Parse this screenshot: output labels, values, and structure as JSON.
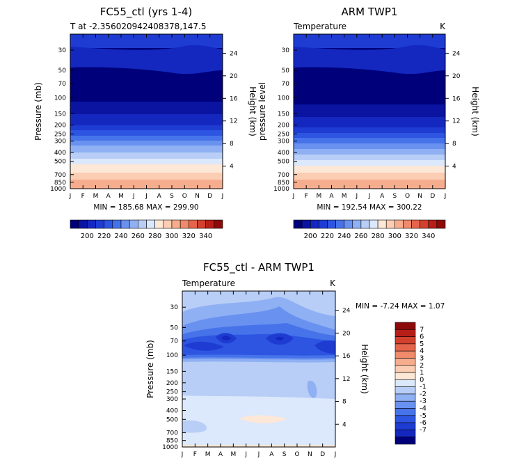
{
  "chart_data": [
    {
      "type": "heatmap",
      "title": "FC55_ctl (yrs 1-4)",
      "subtitle": "T at -2.356020942408378,147.5",
      "units": "",
      "ylabel": "Pressure (mb)",
      "y2label": "Height (km)",
      "x_ticks": [
        "J",
        "F",
        "M",
        "A",
        "M",
        "J",
        "J",
        "A",
        "S",
        "O",
        "N",
        "D",
        "J"
      ],
      "y_ticks": [
        30,
        50,
        70,
        100,
        150,
        200,
        250,
        300,
        400,
        500,
        700,
        850,
        1000
      ],
      "y2_ticks": [
        24,
        20,
        16,
        12,
        8,
        4
      ],
      "ylim": [
        1000,
        20
      ],
      "y_scale": "log",
      "stats": "MIN = 185.68 MAX = 299.90",
      "colorbar_labels": [
        "200",
        "220",
        "240",
        "260",
        "280",
        "300",
        "320",
        "340"
      ]
    },
    {
      "type": "heatmap",
      "title": "ARM TWP1",
      "subtitle": "Temperature",
      "units": "K",
      "ylabel": "pressure level",
      "y2label": "Height (km)",
      "x_ticks": [
        "J",
        "F",
        "M",
        "A",
        "M",
        "J",
        "J",
        "A",
        "S",
        "O",
        "N",
        "D",
        "J"
      ],
      "y_ticks": [
        30,
        50,
        70,
        100,
        150,
        200,
        250,
        300,
        400,
        500,
        700,
        850,
        1000
      ],
      "y2_ticks": [
        24,
        20,
        16,
        12,
        8,
        4
      ],
      "ylim": [
        1000,
        20
      ],
      "y_scale": "log",
      "stats": "MIN = 192.54 MAX = 300.22",
      "colorbar_labels": [
        "200",
        "220",
        "240",
        "260",
        "280",
        "300",
        "320",
        "340"
      ]
    },
    {
      "type": "heatmap",
      "title": "FC55_ctl - ARM TWP1",
      "subtitle": "Temperature",
      "units": "K",
      "ylabel": "Pressure (mb)",
      "y2label": "Height (km)",
      "x_ticks": [
        "J",
        "F",
        "M",
        "A",
        "M",
        "J",
        "J",
        "A",
        "S",
        "O",
        "N",
        "D",
        "J"
      ],
      "y_ticks": [
        30,
        50,
        70,
        100,
        150,
        200,
        250,
        300,
        400,
        500,
        700,
        850,
        1000
      ],
      "y2_ticks": [
        24,
        20,
        16,
        12,
        8,
        4
      ],
      "ylim": [
        1000,
        20
      ],
      "y_scale": "log",
      "stats": "MIN =   -7.24 MAX =    1.07",
      "colorbar_labels": [
        "7",
        "6",
        "5",
        "4",
        "3",
        "2",
        "1",
        "0",
        "-1",
        "-2",
        "-3",
        "-4",
        "-5",
        "-6",
        "-7"
      ]
    }
  ],
  "colors": {
    "abs_scale": [
      "#00007a",
      "#0a14a0",
      "#1428c0",
      "#1e3cd2",
      "#2d55e1",
      "#4673ea",
      "#6991ef",
      "#8fb0f3",
      "#b8cef7",
      "#dce8fb",
      "#fde7d6",
      "#fbcdb2",
      "#f6ad8e",
      "#ef8a6b",
      "#e4654b",
      "#d2402e",
      "#b81e18",
      "#8c0a0a"
    ],
    "diff_scale": [
      "#8c0a0a",
      "#b81e18",
      "#d2402e",
      "#e4654b",
      "#ef8a6b",
      "#f6ad8e",
      "#fbcdb2",
      "#fde7d6",
      "#dce8fb",
      "#b8cef7",
      "#8fb0f3",
      "#6991ef",
      "#4673ea",
      "#2d55e1",
      "#1e3cd2",
      "#1428c0",
      "#00007a"
    ]
  }
}
